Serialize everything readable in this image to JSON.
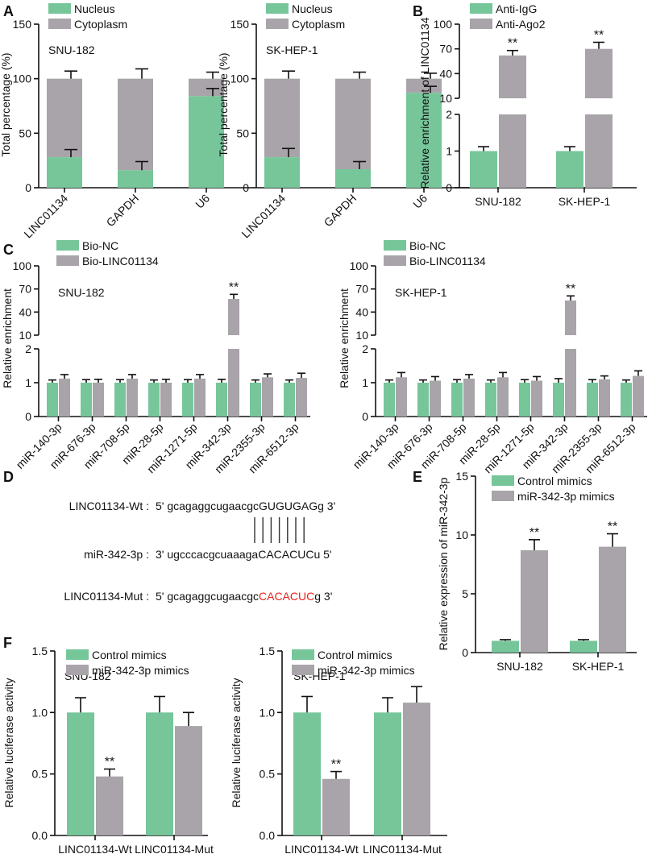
{
  "colors": {
    "green": "#76c69a",
    "gray": "#a8a4a9",
    "axis": "#111111",
    "mut": "#e8231c"
  },
  "letters": {
    "A": "A",
    "B": "B",
    "C": "C",
    "D": "D",
    "E": "E",
    "F": "F"
  },
  "panel_d": {
    "wt_label": "LINC01134-Wt :",
    "wt_seq_a": "5' gcagaggcugaacgc",
    "wt_seq_b": "GUGUGAG",
    "wt_seq_c": "g 3'",
    "mir_label": "miR-342-3p :",
    "mir_seq_a": "3' ugcccacgcuaaaga",
    "mir_seq_b": "CACACUC",
    "mir_seq_c": "u 5'",
    "mut_label": "LINC01134-Mut :",
    "mut_seq_a": "5' gcagaggcugaacgc",
    "mut_seq_b": "CACACUC",
    "mut_seq_c": "g 3'"
  },
  "chart_data": [
    {
      "id": "A1",
      "type": "stacked-bar",
      "panel": "A",
      "ylabel": "Total percentage (%)",
      "ylim": [
        0,
        150
      ],
      "yticks": [
        0,
        50,
        100,
        150
      ],
      "annotation": "SNU-182",
      "categories": [
        "LINC01134",
        "GAPDH",
        "U6"
      ],
      "series": [
        {
          "name": "Nucleus",
          "values": [
            28,
            16,
            84
          ],
          "errors": [
            7,
            8,
            7
          ]
        },
        {
          "name": "Cytoplasm",
          "values": [
            72,
            84,
            16
          ],
          "errors": [
            7,
            9,
            6
          ]
        }
      ]
    },
    {
      "id": "A2",
      "type": "stacked-bar",
      "panel": "A",
      "ylabel": "Total percentage (%)",
      "ylim": [
        0,
        150
      ],
      "yticks": [
        0,
        50,
        100,
        150
      ],
      "annotation": "SK-HEP-1",
      "categories": [
        "LINC01134",
        "GAPDH",
        "U6"
      ],
      "series": [
        {
          "name": "Nucleus",
          "values": [
            28,
            17,
            87
          ],
          "errors": [
            8,
            7,
            6
          ]
        },
        {
          "name": "Cytoplasm",
          "values": [
            72,
            83,
            13
          ],
          "errors": [
            7,
            6,
            5
          ]
        }
      ]
    },
    {
      "id": "B",
      "type": "bar",
      "panel": "B",
      "ylabel": "Relative enrichment of LINC01134",
      "yticks": [
        0,
        1,
        2,
        10,
        40,
        70,
        100
      ],
      "categories": [
        "SNU-182",
        "SK-HEP-1"
      ],
      "series": [
        {
          "name": "Anti-IgG",
          "values": [
            1.0,
            1.0
          ],
          "errors": [
            0.12,
            0.12
          ],
          "sig": [
            "",
            ""
          ]
        },
        {
          "name": "Anti-Ago2",
          "values": [
            62,
            70
          ],
          "errors": [
            6,
            8
          ],
          "sig": [
            "**",
            "**"
          ]
        }
      ]
    },
    {
      "id": "C1",
      "type": "bar",
      "panel": "C",
      "ylabel": "Relative enrichment",
      "annotation": "SNU-182",
      "yticks": [
        0,
        1,
        2,
        10,
        40,
        70,
        100
      ],
      "categories": [
        "miR-140-3p",
        "miR-676-3p",
        "miR-708-5p",
        "miR-28-5p",
        "miR-1271-5p",
        "miR-342-3p",
        "miR-2355-3p",
        "miR-6512-3p"
      ],
      "series": [
        {
          "name": "Bio-NC",
          "values": [
            1,
            1,
            1,
            1,
            1,
            1,
            1,
            1
          ],
          "errors": [
            0.08,
            0.09,
            0.09,
            0.08,
            0.09,
            0.1,
            0.08,
            0.08
          ],
          "sig": [
            "",
            "",
            "",
            "",
            "",
            "",
            "",
            ""
          ]
        },
        {
          "name": "Bio-LINC01134",
          "values": [
            1.12,
            1.0,
            1.12,
            1.0,
            1.12,
            57,
            1.16,
            1.14
          ],
          "errors": [
            0.12,
            0.1,
            0.12,
            0.1,
            0.12,
            6,
            0.1,
            0.14
          ],
          "sig": [
            "",
            "",
            "",
            "",
            "",
            "**",
            "",
            ""
          ]
        }
      ]
    },
    {
      "id": "C2",
      "type": "bar",
      "panel": "C",
      "ylabel": "Relative enrichment",
      "annotation": "SK-HEP-1",
      "yticks": [
        0,
        1,
        2,
        10,
        40,
        70,
        100
      ],
      "categories": [
        "miR-140-3p",
        "miR-676-3p",
        "miR-708-5p",
        "miR-28-5p",
        "miR-1271-5p",
        "miR-342-3p",
        "miR-2355-3p",
        "miR-6512-3p"
      ],
      "series": [
        {
          "name": "Bio-NC",
          "values": [
            1,
            1,
            1,
            1,
            1,
            1,
            1,
            1
          ],
          "errors": [
            0.08,
            0.08,
            0.09,
            0.08,
            0.09,
            0.12,
            0.09,
            0.08
          ],
          "sig": [
            "",
            "",
            "",
            "",
            "",
            "",
            "",
            ""
          ]
        },
        {
          "name": "Bio-LINC01134",
          "values": [
            1.16,
            1.06,
            1.12,
            1.16,
            1.06,
            55,
            1.1,
            1.2
          ],
          "errors": [
            0.14,
            0.12,
            0.12,
            0.14,
            0.12,
            6,
            0.1,
            0.15
          ],
          "sig": [
            "",
            "",
            "",
            "",
            "",
            "**",
            "",
            ""
          ]
        }
      ]
    },
    {
      "id": "E",
      "type": "bar",
      "panel": "E",
      "ylabel": "Relative expression of miR-342-3p",
      "ylim": [
        0,
        15
      ],
      "yticks": [
        0,
        5,
        10,
        15
      ],
      "categories": [
        "SNU-182",
        "SK-HEP-1"
      ],
      "series": [
        {
          "name": "Control mimics",
          "values": [
            1.0,
            1.0
          ],
          "errors": [
            0.1,
            0.1
          ],
          "sig": [
            "",
            ""
          ]
        },
        {
          "name": "miR-342-3p mimics",
          "values": [
            8.7,
            9.0
          ],
          "errors": [
            0.9,
            1.1
          ],
          "sig": [
            "**",
            "**"
          ]
        }
      ]
    },
    {
      "id": "F1",
      "type": "bar",
      "panel": "F",
      "ylabel": "Relative luciferase activity",
      "ylim": [
        0,
        1.5
      ],
      "yticks": [
        0.0,
        0.5,
        1.0,
        1.5
      ],
      "annotation": "SNU-182",
      "categories": [
        "LINC01134-Wt",
        "LINC01134-Mut"
      ],
      "series": [
        {
          "name": "Control mimics",
          "values": [
            1.0,
            1.0
          ],
          "errors": [
            0.12,
            0.13
          ],
          "sig": [
            "",
            ""
          ]
        },
        {
          "name": "miR-342-3p mimics",
          "values": [
            0.48,
            0.89
          ],
          "errors": [
            0.06,
            0.11
          ],
          "sig": [
            "**",
            ""
          ]
        }
      ]
    },
    {
      "id": "F2",
      "type": "bar",
      "panel": "F",
      "ylabel": "Relative luciferase activity",
      "ylim": [
        0,
        1.5
      ],
      "yticks": [
        0.0,
        0.5,
        1.0,
        1.5
      ],
      "annotation": "SK-HEP-1",
      "categories": [
        "LINC01134-Wt",
        "LINC01134-Mut"
      ],
      "series": [
        {
          "name": "Control mimics",
          "values": [
            1.0,
            1.0
          ],
          "errors": [
            0.13,
            0.12
          ],
          "sig": [
            "",
            ""
          ]
        },
        {
          "name": "miR-342-3p mimics",
          "values": [
            0.46,
            1.08
          ],
          "errors": [
            0.06,
            0.13
          ],
          "sig": [
            "**",
            ""
          ]
        }
      ]
    }
  ]
}
